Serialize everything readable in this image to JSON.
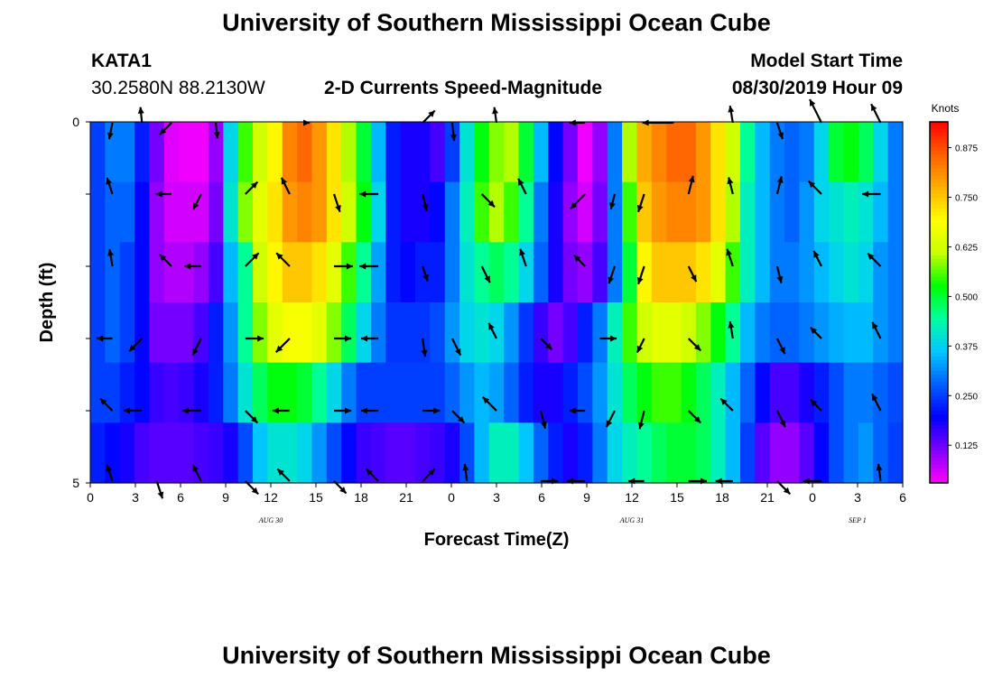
{
  "header": {
    "title_top": "University of Southern Mississippi Ocean Cube",
    "title_bottom": "University of Southern Mississippi Ocean Cube",
    "station": "KATA1",
    "coords": "30.2580N 88.2130W",
    "chart_title": "2-D Currents Speed-Magnitude",
    "model_label": "Model Start Time",
    "model_time": "08/30/2019 Hour 09"
  },
  "chart_data": {
    "type": "heatmap",
    "title": "2-D Currents Speed-Magnitude",
    "xlabel": "Forecast Time(Z)",
    "ylabel": "Depth (ft)",
    "ylim": [
      0,
      5
    ],
    "y_ticks": [
      "0",
      "5"
    ],
    "x_ticks": [
      "0",
      "3",
      "6",
      "9",
      "12",
      "15",
      "18",
      "21",
      "0",
      "3",
      "6",
      "9",
      "12",
      "15",
      "18",
      "21",
      "0",
      "3",
      "6"
    ],
    "date_labels": [
      {
        "label": "AUG 30",
        "x_hours": 12
      },
      {
        "label": "AUG 31",
        "x_hours": 36
      },
      {
        "label": "SEP 1",
        "x_hours": 51
      }
    ],
    "colorbar": {
      "unit": "Knots",
      "range": [
        0.03,
        0.94
      ],
      "tick_values": [
        0.125,
        0.25,
        0.375,
        0.5,
        0.625,
        0.75,
        0.875
      ],
      "tick_labels": [
        "0.125",
        "0.250",
        "0.375",
        "0.500",
        "0.625",
        "0.750",
        "0.875"
      ],
      "colors": [
        "#ff00ff",
        "#8000ff",
        "#0000ff",
        "#0060ff",
        "#00c8ff",
        "#00ffa0",
        "#00ff00",
        "#c8ff00",
        "#ffff00",
        "#ffb000",
        "#ff6000",
        "#ff0000"
      ]
    },
    "time_hours": [
      0,
      1,
      2,
      3,
      4,
      5,
      6,
      7,
      8,
      9,
      10,
      11,
      12,
      13,
      14,
      15,
      16,
      17,
      18,
      19,
      20,
      21,
      22,
      23,
      24,
      25,
      26,
      27,
      28,
      29,
      30,
      31,
      32,
      33,
      34,
      35,
      36,
      37,
      38,
      39,
      40,
      41,
      42,
      43,
      44,
      45,
      46,
      47,
      48,
      49,
      50,
      51,
      52,
      53,
      54
    ],
    "depth_rows": [
      "0",
      "1",
      "2",
      "3",
      "4",
      "5"
    ],
    "speed": [
      [
        0.25,
        0.3,
        0.3,
        0.22,
        0.12,
        0.05,
        0.04,
        0.04,
        0.1,
        0.38,
        0.55,
        0.62,
        0.7,
        0.82,
        0.85,
        0.8,
        0.72,
        0.6,
        0.5,
        0.35,
        0.22,
        0.18,
        0.18,
        0.15,
        0.25,
        0.4,
        0.52,
        0.58,
        0.6,
        0.5,
        0.35,
        0.2,
        0.12,
        0.04,
        0.1,
        0.3,
        0.6,
        0.78,
        0.82,
        0.85,
        0.85,
        0.8,
        0.72,
        0.62,
        0.45,
        0.35,
        0.3,
        0.28,
        0.3,
        0.38,
        0.5,
        0.52,
        0.48,
        0.38,
        0.3
      ],
      [
        0.25,
        0.28,
        0.28,
        0.2,
        0.1,
        0.06,
        0.06,
        0.06,
        0.12,
        0.4,
        0.58,
        0.65,
        0.72,
        0.8,
        0.82,
        0.8,
        0.72,
        0.62,
        0.52,
        0.38,
        0.22,
        0.18,
        0.18,
        0.2,
        0.3,
        0.42,
        0.55,
        0.6,
        0.55,
        0.45,
        0.3,
        0.18,
        0.1,
        0.06,
        0.12,
        0.3,
        0.55,
        0.75,
        0.8,
        0.82,
        0.82,
        0.8,
        0.72,
        0.6,
        0.42,
        0.35,
        0.3,
        0.28,
        0.32,
        0.38,
        0.4,
        0.42,
        0.4,
        0.35,
        0.3
      ],
      [
        0.25,
        0.28,
        0.25,
        0.2,
        0.1,
        0.08,
        0.08,
        0.1,
        0.15,
        0.35,
        0.45,
        0.62,
        0.7,
        0.75,
        0.75,
        0.72,
        0.65,
        0.55,
        0.45,
        0.33,
        0.22,
        0.2,
        0.22,
        0.22,
        0.3,
        0.4,
        0.45,
        0.48,
        0.45,
        0.38,
        0.28,
        0.18,
        0.12,
        0.1,
        0.15,
        0.3,
        0.5,
        0.7,
        0.75,
        0.75,
        0.75,
        0.72,
        0.65,
        0.55,
        0.42,
        0.35,
        0.3,
        0.3,
        0.32,
        0.35,
        0.38,
        0.4,
        0.38,
        0.32,
        0.3
      ],
      [
        0.25,
        0.28,
        0.25,
        0.2,
        0.12,
        0.12,
        0.12,
        0.15,
        0.22,
        0.32,
        0.45,
        0.58,
        0.65,
        0.68,
        0.68,
        0.65,
        0.58,
        0.48,
        0.38,
        0.3,
        0.24,
        0.24,
        0.24,
        0.26,
        0.32,
        0.38,
        0.4,
        0.38,
        0.32,
        0.24,
        0.16,
        0.12,
        0.15,
        0.22,
        0.3,
        0.42,
        0.55,
        0.62,
        0.65,
        0.65,
        0.62,
        0.58,
        0.52,
        0.45,
        0.35,
        0.3,
        0.28,
        0.28,
        0.3,
        0.32,
        0.34,
        0.35,
        0.35,
        0.32,
        0.3
      ],
      [
        0.25,
        0.25,
        0.22,
        0.2,
        0.16,
        0.15,
        0.16,
        0.18,
        0.22,
        0.3,
        0.4,
        0.48,
        0.52,
        0.52,
        0.5,
        0.45,
        0.38,
        0.3,
        0.25,
        0.25,
        0.25,
        0.25,
        0.25,
        0.25,
        0.28,
        0.32,
        0.35,
        0.33,
        0.28,
        0.22,
        0.18,
        0.18,
        0.22,
        0.26,
        0.32,
        0.4,
        0.48,
        0.52,
        0.55,
        0.55,
        0.52,
        0.48,
        0.42,
        0.35,
        0.28,
        0.2,
        0.15,
        0.15,
        0.18,
        0.22,
        0.26,
        0.3,
        0.3,
        0.28,
        0.26
      ],
      [
        0.22,
        0.2,
        0.18,
        0.15,
        0.14,
        0.14,
        0.14,
        0.15,
        0.16,
        0.18,
        0.26,
        0.36,
        0.4,
        0.4,
        0.38,
        0.32,
        0.26,
        0.2,
        0.16,
        0.15,
        0.14,
        0.14,
        0.15,
        0.16,
        0.18,
        0.26,
        0.35,
        0.42,
        0.42,
        0.36,
        0.28,
        0.22,
        0.18,
        0.22,
        0.3,
        0.38,
        0.42,
        0.45,
        0.48,
        0.5,
        0.5,
        0.48,
        0.42,
        0.35,
        0.25,
        0.14,
        0.1,
        0.1,
        0.14,
        0.2,
        0.26,
        0.3,
        0.32,
        0.28,
        0.25
      ]
    ],
    "arrows": [
      {
        "row": 0,
        "items": [
          [
            1,
            -5,
            0.32
          ],
          [
            3,
            10,
            0.3
          ],
          [
            5,
            -1,
            0.32
          ],
          [
            8,
            10,
            0.3
          ],
          [
            14,
            0,
            0.1
          ],
          [
            22,
            -1,
            0.33
          ],
          [
            24,
            9,
            0.35
          ],
          [
            27,
            7,
            0.3
          ],
          [
            33,
            0,
            0.3
          ],
          [
            39,
            0,
            0.6
          ],
          [
            43,
            6,
            0.33
          ],
          [
            46,
            3,
            0.33
          ],
          [
            49,
            2,
            0.5
          ],
          [
            53,
            2,
            0.4
          ]
        ]
      },
      {
        "row": 1,
        "items": [
          [
            1,
            3,
            0.33
          ],
          [
            5,
            0,
            0.3
          ],
          [
            7,
            -2,
            0.33
          ],
          [
            10,
            -1,
            0.33
          ],
          [
            13,
            2,
            0.35
          ],
          [
            16,
            3,
            0.36
          ],
          [
            19,
            0,
            0.36
          ],
          [
            22,
            4,
            0.33
          ],
          [
            26,
            1,
            0.35
          ],
          [
            29,
            2,
            0.33
          ],
          [
            33,
            -1,
            0.4
          ],
          [
            35,
            -4,
            0.3
          ],
          [
            37,
            -3,
            0.36
          ],
          [
            40,
            -4,
            0.36
          ],
          [
            43,
            4,
            0.33
          ],
          [
            46,
            -4,
            0.35
          ],
          [
            49,
            1,
            0.35
          ],
          [
            53,
            0,
            0.35
          ]
        ]
      },
      {
        "row": 2,
        "items": [
          [
            1,
            6,
            0.33
          ],
          [
            5,
            1,
            0.32
          ],
          [
            7,
            0,
            0.32
          ],
          [
            10,
            -1,
            0.36
          ],
          [
            13,
            1,
            0.36
          ],
          [
            16,
            0,
            0.36
          ],
          [
            19,
            0,
            0.36
          ],
          [
            22,
            3,
            0.3
          ],
          [
            26,
            2,
            0.35
          ],
          [
            29,
            3,
            0.35
          ],
          [
            33,
            1,
            0.3
          ],
          [
            35,
            -3,
            0.35
          ],
          [
            37,
            -3,
            0.36
          ],
          [
            40,
            2,
            0.33
          ],
          [
            43,
            3,
            0.35
          ],
          [
            46,
            4,
            0.33
          ],
          [
            49,
            2,
            0.33
          ],
          [
            53,
            1,
            0.35
          ]
        ]
      },
      {
        "row": 3,
        "items": [
          [
            1,
            0,
            0.3
          ],
          [
            3,
            -1,
            0.35
          ],
          [
            7,
            -2,
            0.36
          ],
          [
            10,
            0,
            0.35
          ],
          [
            13,
            -1,
            0.37
          ],
          [
            16,
            0,
            0.33
          ],
          [
            19,
            0,
            0.33
          ],
          [
            22,
            7,
            0.35
          ],
          [
            24,
            2,
            0.36
          ],
          [
            27,
            2,
            0.33
          ],
          [
            30,
            1,
            0.3
          ],
          [
            34,
            0,
            0.32
          ],
          [
            37,
            -2,
            0.3
          ],
          [
            40,
            1,
            0.33
          ],
          [
            43,
            6,
            0.33
          ],
          [
            46,
            2,
            0.33
          ],
          [
            49,
            1,
            0.3
          ],
          [
            53,
            2,
            0.35
          ]
        ]
      },
      {
        "row": 4,
        "items": [
          [
            1,
            1,
            0.33
          ],
          [
            3,
            0,
            0.35
          ],
          [
            7,
            0,
            0.36
          ],
          [
            10,
            1,
            0.33
          ],
          [
            13,
            0,
            0.33
          ],
          [
            16,
            0,
            0.33
          ],
          [
            19,
            0,
            0.33
          ],
          [
            22,
            0,
            0.33
          ],
          [
            24,
            1,
            0.33
          ],
          [
            27,
            1,
            0.37
          ],
          [
            30,
            4,
            0.35
          ],
          [
            33,
            0,
            0.3
          ],
          [
            35,
            -2,
            0.35
          ],
          [
            37,
            -4,
            0.36
          ],
          [
            40,
            1,
            0.33
          ],
          [
            43,
            1,
            0.33
          ],
          [
            46,
            2,
            0.35
          ],
          [
            49,
            1,
            0.3
          ],
          [
            53,
            2,
            0.36
          ]
        ]
      },
      {
        "row": 5,
        "items": [
          [
            1,
            3,
            0.33
          ],
          [
            4,
            3,
            0.35
          ],
          [
            7,
            2,
            0.35
          ],
          [
            10,
            1,
            0.35
          ],
          [
            13,
            1,
            0.33
          ],
          [
            16,
            1,
            0.33
          ],
          [
            19,
            1,
            0.33
          ],
          [
            22,
            -1,
            0.33
          ],
          [
            25,
            8,
            0.33
          ],
          [
            30,
            0,
            0.33
          ],
          [
            33,
            0,
            0.35
          ],
          [
            37,
            0,
            0.3
          ],
          [
            40,
            0,
            0.35
          ],
          [
            43,
            0,
            0.33
          ],
          [
            46,
            1,
            0.35
          ],
          [
            49,
            0,
            0.35
          ],
          [
            53,
            8,
            0.33
          ]
        ]
      }
    ]
  }
}
